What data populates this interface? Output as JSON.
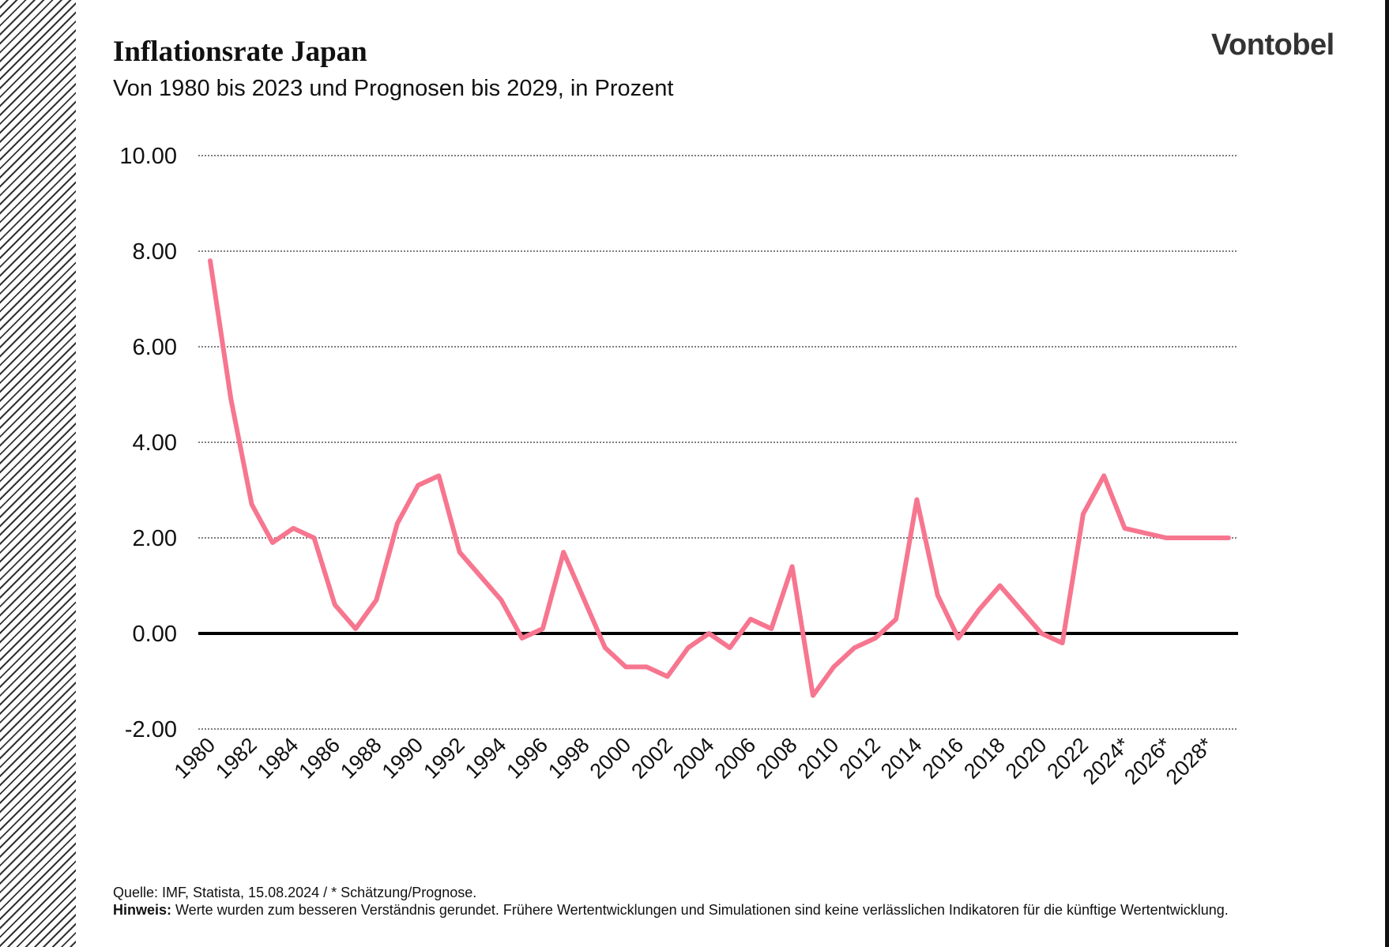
{
  "header": {
    "title": "Inflationsrate Japan",
    "subtitle": "Von 1980 bis 2023 und Prognosen bis 2029, in Prozent",
    "logo": "Vontobel"
  },
  "footer": {
    "source": "Quelle: IMF, Statista, 15.08.2024 / * Schätzung/Prognose.",
    "note_label": "Hinweis:",
    "note_text": " Werte wurden zum besseren Verständnis gerundet. Frühere Wertentwicklungen und Simulationen sind keine verlässlichen Indikatoren für die künftige Wertentwicklung."
  },
  "colors": {
    "line": "#f7768f",
    "zero_line": "#000000",
    "grid": "#333333"
  },
  "chart_data": {
    "type": "line",
    "title": "Inflationsrate Japan",
    "subtitle": "Von 1980 bis 2023 und Prognosen bis 2029, in Prozent",
    "ylim": [
      -2,
      10
    ],
    "yticks": [
      "-2.00",
      "0.00",
      "2.00",
      "4.00",
      "6.00",
      "8.00",
      "10.00"
    ],
    "ytick_values": [
      -2,
      0,
      2,
      4,
      6,
      8,
      10
    ],
    "grid": "horizontal dotted",
    "x": [
      1980,
      1981,
      1982,
      1983,
      1984,
      1985,
      1986,
      1987,
      1988,
      1989,
      1990,
      1991,
      1992,
      1993,
      1994,
      1995,
      1996,
      1997,
      1998,
      1999,
      2000,
      2001,
      2002,
      2003,
      2004,
      2005,
      2006,
      2007,
      2008,
      2009,
      2010,
      2011,
      2012,
      2013,
      2014,
      2015,
      2016,
      2017,
      2018,
      2019,
      2020,
      2021,
      2022,
      2023,
      2024,
      2025,
      2026,
      2027,
      2028,
      2029
    ],
    "xtick_labels": [
      "1980",
      "1982",
      "1984",
      "1986",
      "1988",
      "1990",
      "1992",
      "1994",
      "1996",
      "1998",
      "2000",
      "2002",
      "2004",
      "2006",
      "2008",
      "2010",
      "2012",
      "2014",
      "2016",
      "2018",
      "2020",
      "2022",
      "2024*",
      "2026*",
      "2028*"
    ],
    "xtick_values": [
      1980,
      1982,
      1984,
      1986,
      1988,
      1990,
      1992,
      1994,
      1996,
      1998,
      2000,
      2002,
      2004,
      2006,
      2008,
      2010,
      2012,
      2014,
      2016,
      2018,
      2020,
      2022,
      2024,
      2026,
      2028
    ],
    "values": [
      7.8,
      4.9,
      2.7,
      1.9,
      2.2,
      2.0,
      0.6,
      0.1,
      0.7,
      2.3,
      3.1,
      3.3,
      1.7,
      1.2,
      0.7,
      -0.1,
      0.1,
      1.7,
      0.7,
      -0.3,
      -0.7,
      -0.7,
      -0.9,
      -0.3,
      0.0,
      -0.3,
      0.3,
      0.1,
      1.4,
      -1.3,
      -0.7,
      -0.3,
      -0.1,
      0.3,
      2.8,
      0.8,
      -0.1,
      0.5,
      1.0,
      0.5,
      0.0,
      -0.2,
      2.5,
      3.3,
      2.2,
      2.1,
      2.0,
      2.0,
      2.0,
      2.0
    ]
  }
}
